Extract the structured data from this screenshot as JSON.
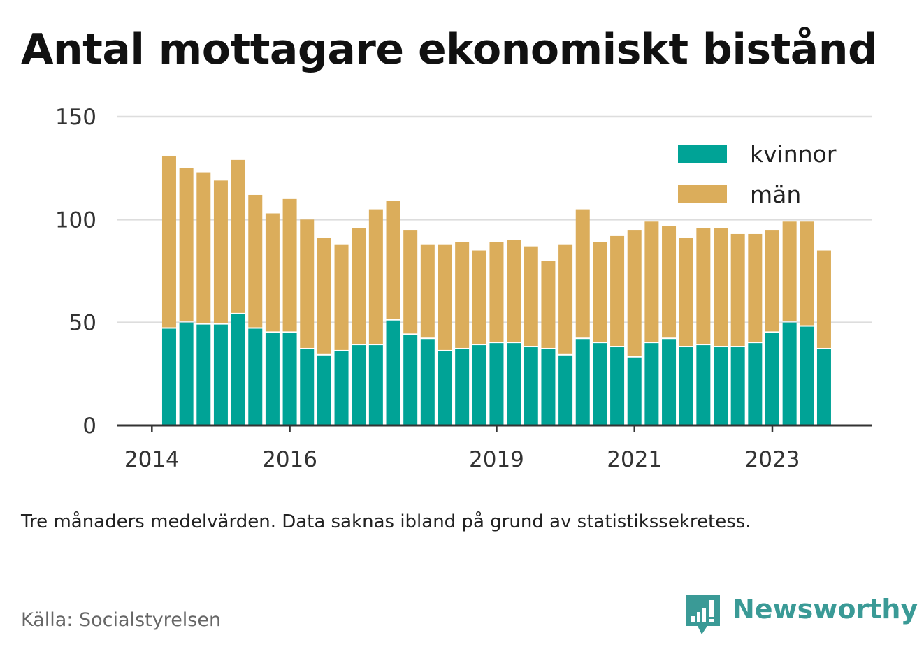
{
  "title": "Antal mottagare ekonomiskt bistånd",
  "note": "Tre månaders medelvärden. Data saknas ibland på grund av statistikssekretess.",
  "source": "Källa: Socialstyrelsen",
  "brand": {
    "name": "Newsworthy",
    "icon": "bar-chart-logo-icon",
    "color": "#3a9a96"
  },
  "colors": {
    "kvinnor": "#00a396",
    "man": "#dbad5b",
    "grid": "#dddddd",
    "axis": "#333333"
  },
  "chart_data": {
    "type": "bar",
    "stacked": true,
    "ylim": [
      0,
      150
    ],
    "yticks": [
      0,
      50,
      100,
      150
    ],
    "xticks": [
      {
        "label": "2014",
        "x": 2014.0
      },
      {
        "label": "2016",
        "x": 2016.0
      },
      {
        "label": "2019",
        "x": 2019.0
      },
      {
        "label": "2021",
        "x": 2021.0
      },
      {
        "label": "2023",
        "x": 2023.0
      }
    ],
    "xlim": [
      2013.5,
      2024.45
    ],
    "grid": true,
    "legend_position": "top-right",
    "categories": [
      "2014-Q2",
      "2014-Q3",
      "2014-Q4",
      "2015-Q1",
      "2015-Q2",
      "2015-Q3",
      "2015-Q4",
      "2016-Q1",
      "2016-Q2",
      "2016-Q3",
      "2016-Q4",
      "2017-Q1",
      "2017-Q2",
      "2017-Q3",
      "2017-Q4",
      "2018-Q1",
      "2018-Q2",
      "2018-Q3",
      "2018-Q4",
      "2019-Q1",
      "2019-Q2",
      "2019-Q3",
      "2019-Q4",
      "2020-Q1",
      "2020-Q2",
      "2020-Q3",
      "2020-Q4",
      "2021-Q1",
      "2021-Q2",
      "2021-Q3",
      "2021-Q4",
      "2022-Q1",
      "2022-Q2",
      "2022-Q3",
      "2022-Q4",
      "2023-Q1",
      "2023-Q2",
      "2023-Q3",
      "2023-Q4"
    ],
    "x": [
      2014.25,
      2014.5,
      2014.75,
      2015.0,
      2015.25,
      2015.5,
      2015.75,
      2016.0,
      2016.25,
      2016.5,
      2016.75,
      2017.0,
      2017.25,
      2017.5,
      2017.75,
      2018.0,
      2018.25,
      2018.5,
      2018.75,
      2019.0,
      2019.25,
      2019.5,
      2019.75,
      2020.0,
      2020.25,
      2020.5,
      2020.75,
      2021.0,
      2021.25,
      2021.5,
      2021.75,
      2022.0,
      2022.25,
      2022.5,
      2022.75,
      2023.0,
      2023.25,
      2023.5,
      2023.75
    ],
    "series": [
      {
        "name": "kvinnor",
        "values": [
          47,
          50,
          49,
          49,
          54,
          47,
          45,
          45,
          37,
          34,
          36,
          39,
          39,
          51,
          44,
          42,
          36,
          37,
          39,
          40,
          40,
          38,
          37,
          34,
          42,
          40,
          38,
          33,
          40,
          42,
          38,
          39,
          38,
          38,
          40,
          45,
          50,
          48,
          37
        ]
      },
      {
        "name": "män",
        "values": [
          84,
          75,
          74,
          70,
          75,
          65,
          58,
          65,
          63,
          57,
          52,
          57,
          66,
          58,
          51,
          46,
          52,
          52,
          46,
          49,
          50,
          49,
          43,
          54,
          63,
          49,
          54,
          62,
          59,
          55,
          53,
          57,
          58,
          55,
          53,
          50,
          49,
          51,
          48
        ]
      }
    ]
  }
}
